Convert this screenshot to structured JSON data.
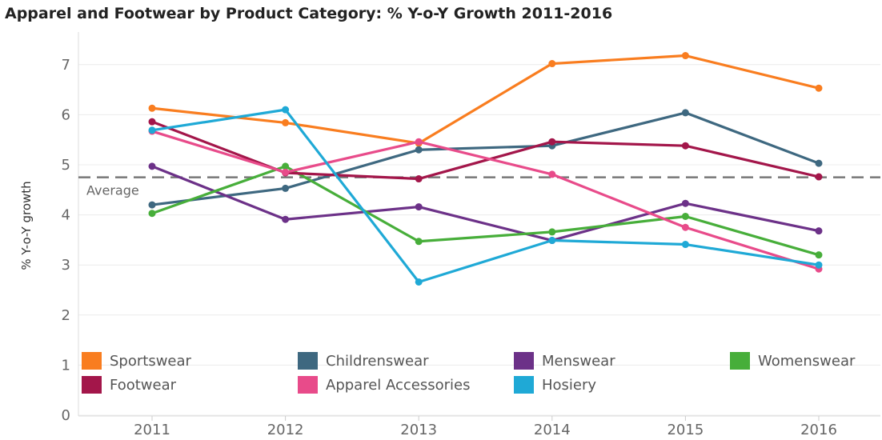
{
  "chart_data": {
    "type": "line",
    "title": "Apparel and Footwear by Product Category: % Y-o-Y Growth 2011-2016",
    "ylabel": "% Y-o-Y growth",
    "xlabel": "",
    "categories": [
      "2011",
      "2012",
      "2013",
      "2014",
      "2015",
      "2016"
    ],
    "ylim": [
      0,
      7.5
    ],
    "yticks": [
      0,
      1,
      2,
      3,
      4,
      5,
      6,
      7
    ],
    "grid": "horizontal",
    "legend_position": "bottom",
    "reference_line": {
      "label": "Average",
      "value": 4.75,
      "color": "#777777"
    },
    "series": [
      {
        "name": "Sportswear",
        "color": "#F97D1F",
        "values": [
          6.13,
          5.84,
          5.43,
          7.02,
          7.18,
          6.53
        ]
      },
      {
        "name": "Childrenswear",
        "color": "#3E6880",
        "values": [
          4.2,
          4.53,
          5.3,
          5.38,
          6.04,
          5.03
        ]
      },
      {
        "name": "Menswear",
        "color": "#6C3188",
        "values": [
          4.97,
          3.91,
          4.16,
          3.49,
          4.23,
          3.68
        ]
      },
      {
        "name": "Womenswear",
        "color": "#47AE3A",
        "values": [
          4.03,
          4.97,
          3.47,
          3.66,
          3.97,
          3.2
        ]
      },
      {
        "name": "Footwear",
        "color": "#A3164A",
        "values": [
          5.86,
          4.84,
          4.72,
          5.46,
          5.38,
          4.76
        ]
      },
      {
        "name": "Apparel Accessories",
        "color": "#E84B8A",
        "values": [
          5.67,
          4.85,
          5.46,
          4.81,
          3.75,
          2.92
        ]
      },
      {
        "name": "Hosiery",
        "color": "#1FA9D6",
        "values": [
          5.69,
          6.1,
          2.66,
          3.49,
          3.41,
          3.0
        ]
      }
    ]
  }
}
